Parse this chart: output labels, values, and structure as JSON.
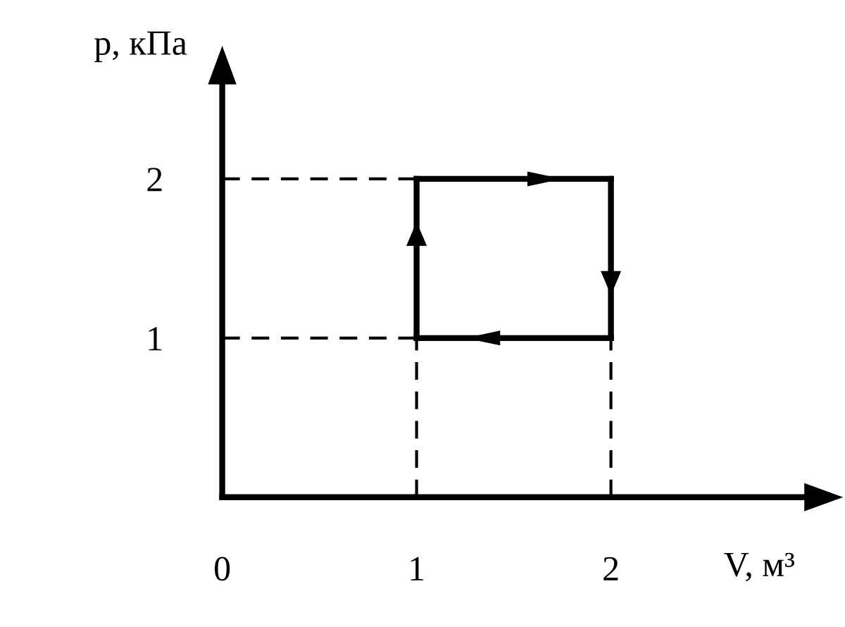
{
  "chart_data": {
    "type": "line",
    "xlabel": "V, м³",
    "ylabel": "p, кПа",
    "xlim": [
      0,
      3.0
    ],
    "ylim": [
      0,
      2.6
    ],
    "xticks": [
      0,
      1,
      2
    ],
    "yticks": [
      1,
      2
    ],
    "grid": false,
    "series": [
      {
        "color": "#000000",
        "x": [
          0,
          1
        ],
        "values": [
          2,
          2
        ],
        "line_style": "dashed"
      },
      {
        "color": "#000000",
        "x": [
          0,
          1
        ],
        "values": [
          1,
          1
        ],
        "line_style": "dashed"
      },
      {
        "color": "#000000",
        "x": [
          1,
          1
        ],
        "values": [
          0,
          1
        ],
        "line_style": "dashed"
      },
      {
        "color": "#000000",
        "x": [
          2,
          2
        ],
        "values": [
          0,
          1
        ],
        "line_style": "dashed"
      },
      {
        "color": "#000000",
        "x": [
          1,
          1
        ],
        "values": [
          1,
          2
        ],
        "line_style": "solid"
      },
      {
        "color": "#000000",
        "x": [
          1,
          2
        ],
        "values": [
          2,
          2
        ],
        "line_style": "solid"
      },
      {
        "color": "#000000",
        "x": [
          2,
          2
        ],
        "values": [
          2,
          1
        ],
        "line_style": "solid"
      },
      {
        "color": "#000000",
        "x": [
          2,
          1
        ],
        "values": [
          1,
          1
        ],
        "line_style": "solid"
      }
    ]
  }
}
